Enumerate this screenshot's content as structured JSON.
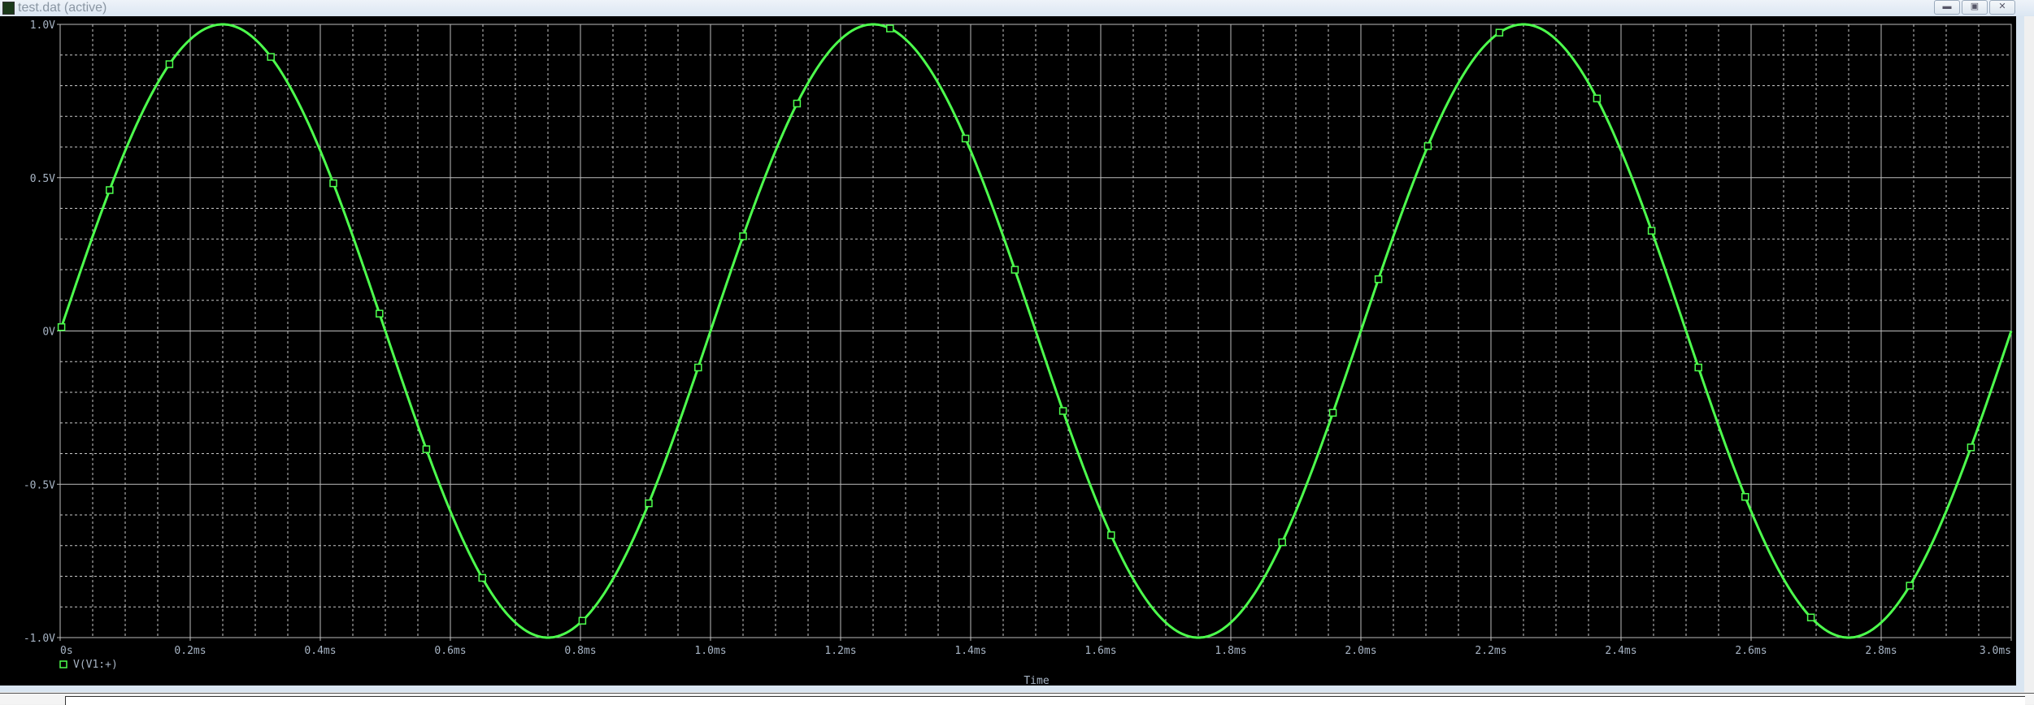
{
  "window": {
    "title": "test.dat (active)",
    "buttons": [
      "minimize",
      "restore",
      "close"
    ]
  },
  "chart_data": {
    "type": "line",
    "title": "",
    "xlabel": "Time",
    "ylabel": "",
    "xlim": [
      0,
      3.0
    ],
    "ylim": [
      -1.0,
      1.0
    ],
    "x_unit": "ms",
    "grid": true,
    "x_ticks": [
      {
        "v": 0,
        "label": "0s"
      },
      {
        "v": 0.2,
        "label": "0.2ms"
      },
      {
        "v": 0.4,
        "label": "0.4ms"
      },
      {
        "v": 0.6,
        "label": "0.6ms"
      },
      {
        "v": 0.8,
        "label": "0.8ms"
      },
      {
        "v": 1.0,
        "label": "1.0ms"
      },
      {
        "v": 1.2,
        "label": "1.2ms"
      },
      {
        "v": 1.4,
        "label": "1.4ms"
      },
      {
        "v": 1.6,
        "label": "1.6ms"
      },
      {
        "v": 1.8,
        "label": "1.8ms"
      },
      {
        "v": 2.0,
        "label": "2.0ms"
      },
      {
        "v": 2.2,
        "label": "2.2ms"
      },
      {
        "v": 2.4,
        "label": "2.4ms"
      },
      {
        "v": 2.6,
        "label": "2.6ms"
      },
      {
        "v": 2.8,
        "label": "2.8ms"
      },
      {
        "v": 3.0,
        "label": "3.0ms"
      }
    ],
    "y_ticks": [
      {
        "v": 1.0,
        "label": "1.0V"
      },
      {
        "v": 0.5,
        "label": "0.5V"
      },
      {
        "v": 0,
        "label": "0V"
      },
      {
        "v": -0.5,
        "label": "-0.5V"
      },
      {
        "v": -1.0,
        "label": "-1.0V"
      }
    ],
    "series": [
      {
        "name": "V(V1:+)",
        "color": "#4dff4d",
        "function": "sine",
        "amplitude": 1.0,
        "frequency_khz": 1.0,
        "marker_x": [
          0.002,
          0.076,
          0.168,
          0.324,
          0.42,
          0.491,
          0.563,
          0.649,
          0.803,
          0.905,
          0.981,
          1.05,
          1.133,
          1.276,
          1.392,
          1.468,
          1.542,
          1.616,
          1.879,
          1.957,
          2.027,
          2.103,
          2.213,
          2.363,
          2.447,
          2.519,
          2.591,
          2.692,
          2.844,
          2.938
        ]
      }
    ],
    "legend": "bottom-left"
  }
}
